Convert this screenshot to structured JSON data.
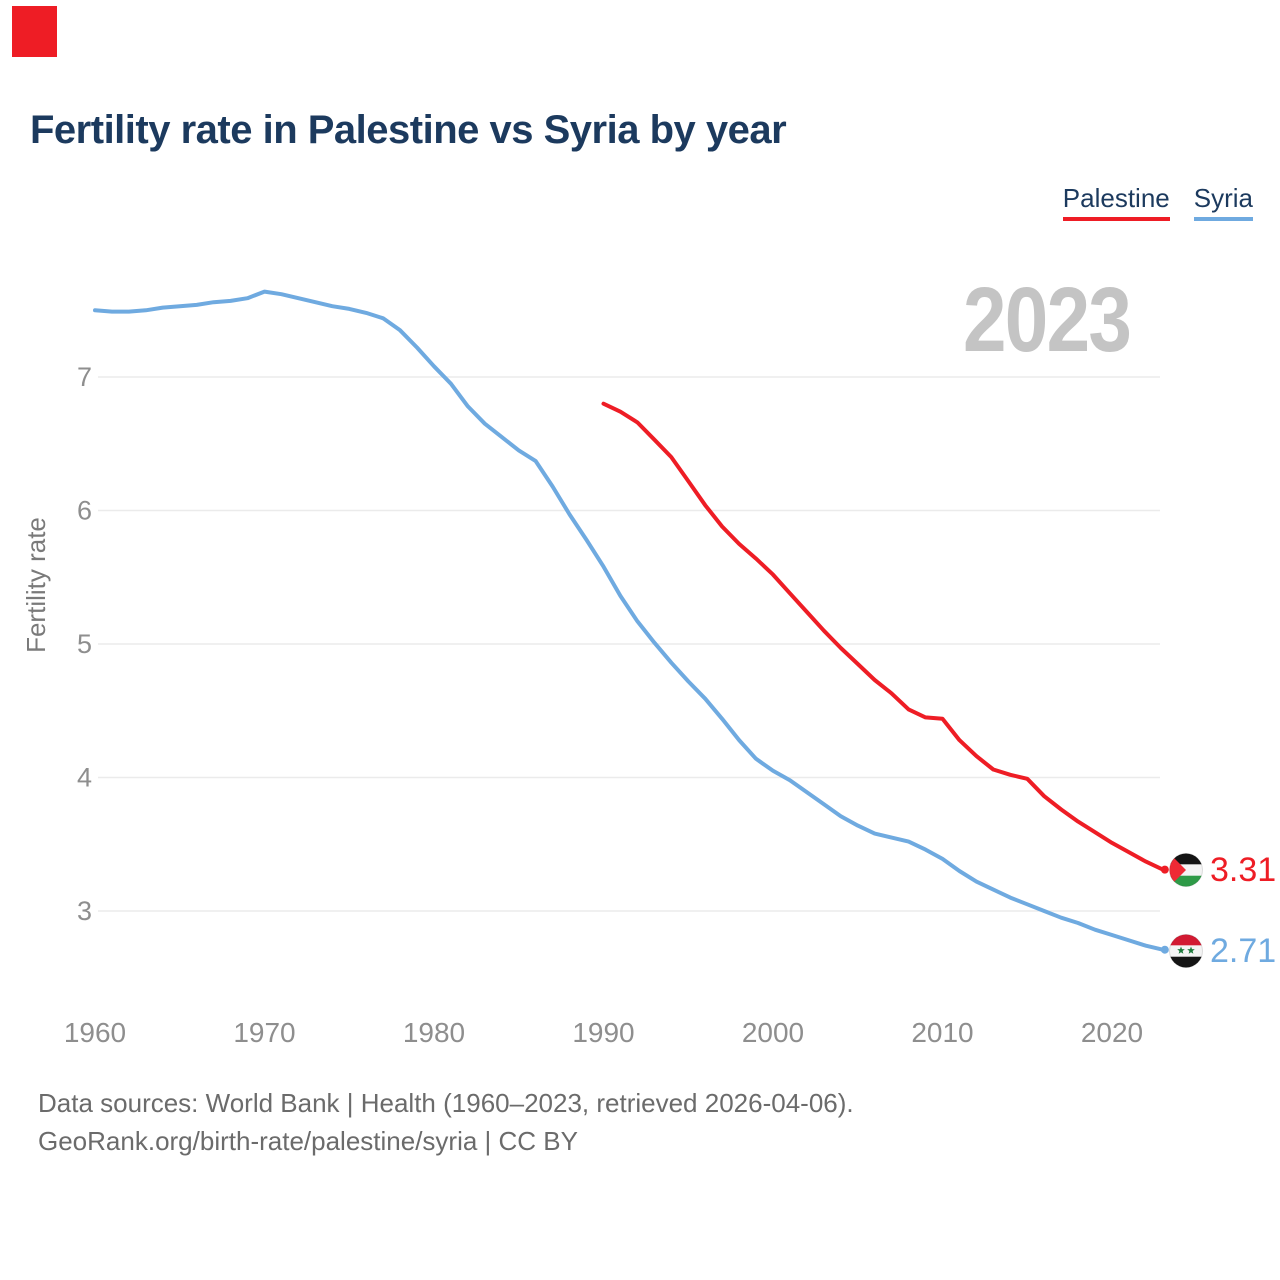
{
  "title": "Fertility rate in Palestine vs Syria by year",
  "watermark": "2023",
  "brand": {
    "logo_color": "#ee1d25"
  },
  "legend": [
    {
      "label": "Palestine",
      "color": "#ee1d25"
    },
    {
      "label": "Syria",
      "color": "#6faae0"
    }
  ],
  "end_labels": [
    {
      "series": "Palestine",
      "value": "3.31",
      "icon": "palestine-flag"
    },
    {
      "series": "Syria",
      "value": "2.71",
      "icon": "syria-flag"
    }
  ],
  "footer": {
    "line1": "Data sources: World Bank | Health (1960–2023, retrieved 2026-04-06).",
    "line2": "GeoRank.org/birth-rate/palestine/syria | CC BY"
  },
  "chart_data": {
    "type": "line",
    "title": "Fertility rate in Palestine vs Syria by year",
    "xlabel": "",
    "ylabel": "Fertility rate",
    "xlim": [
      1960,
      2023
    ],
    "ylim": [
      2.5,
      7.8
    ],
    "grid": "horizontal",
    "gridline_color": "#ebebeb",
    "tick_color": "#8e8e8e",
    "legend_position": "top-right",
    "x_ticks": [
      1960,
      1970,
      1980,
      1990,
      2000,
      2010,
      2020
    ],
    "y_ticks": [
      7,
      6,
      5,
      4,
      3
    ],
    "series": [
      {
        "name": "Palestine",
        "color": "#ee1d25",
        "start_year": 1990,
        "values": [
          6.8,
          6.74,
          6.66,
          6.53,
          6.4,
          6.22,
          6.04,
          5.88,
          5.75,
          5.64,
          5.52,
          5.38,
          5.24,
          5.1,
          4.97,
          4.85,
          4.73,
          4.63,
          4.51,
          4.45,
          4.44,
          4.28,
          4.16,
          4.06,
          4.02,
          3.99,
          3.86,
          3.76,
          3.67,
          3.59,
          3.51,
          3.44,
          3.37,
          3.31
        ]
      },
      {
        "name": "Syria",
        "color": "#6faae0",
        "start_year": 1960,
        "values": [
          7.5,
          7.49,
          7.49,
          7.5,
          7.52,
          7.53,
          7.54,
          7.56,
          7.57,
          7.59,
          7.64,
          7.62,
          7.59,
          7.56,
          7.53,
          7.51,
          7.48,
          7.44,
          7.35,
          7.22,
          7.08,
          6.95,
          6.78,
          6.65,
          6.55,
          6.45,
          6.37,
          6.18,
          5.97,
          5.78,
          5.58,
          5.36,
          5.17,
          5.01,
          4.86,
          4.72,
          4.59,
          4.44,
          4.28,
          4.14,
          4.05,
          3.98,
          3.89,
          3.8,
          3.71,
          3.64,
          3.58,
          3.55,
          3.52,
          3.46,
          3.39,
          3.3,
          3.22,
          3.16,
          3.1,
          3.05,
          3.0,
          2.95,
          2.91,
          2.86,
          2.82,
          2.78,
          2.74,
          2.71
        ]
      }
    ],
    "end_values": {
      "Palestine": 3.31,
      "Syria": 2.71
    }
  }
}
